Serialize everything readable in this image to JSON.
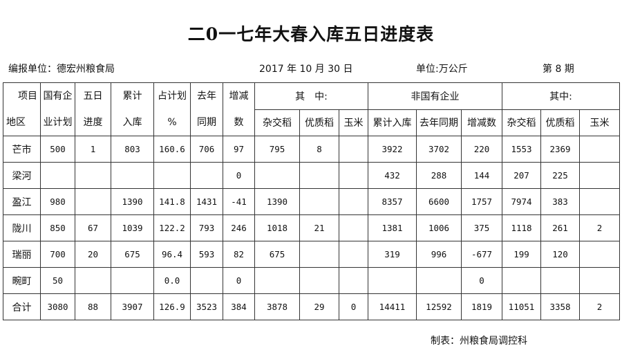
{
  "title": "二0一七年大春入库五日进度表",
  "info": {
    "unit_label": "编报单位：德宏州粮食局",
    "date": "2017 年 10 月 30 日",
    "measure": "单位:万公斤",
    "issue": "第 8 期"
  },
  "header": {
    "region": [
      "项目",
      "地区"
    ],
    "state_plan": [
      "国有企",
      "业计划"
    ],
    "five_day": [
      "五日",
      "进度"
    ],
    "cumulative": [
      "累计",
      "入库"
    ],
    "pct_plan": [
      "占计划",
      "%"
    ],
    "last_year": [
      "去年",
      "同期"
    ],
    "change": [
      "增减",
      "数"
    ],
    "of_which_1": "其　中:",
    "non_state": "非国有企业",
    "of_which_2": "其中:",
    "sub": [
      "杂交稻",
      "优质稻",
      "玉米",
      "累计入库",
      "去年同期",
      "增减数",
      "杂交稻",
      "优质稻",
      "玉米"
    ]
  },
  "rows": [
    [
      "芒市",
      "500",
      "1",
      "803",
      "160.6",
      "706",
      "97",
      "795",
      "8",
      "",
      "3922",
      "3702",
      "220",
      "1553",
      "2369",
      ""
    ],
    [
      "梁河",
      "",
      "",
      "",
      "",
      "",
      "0",
      "",
      "",
      "",
      "432",
      "288",
      "144",
      "207",
      "225",
      ""
    ],
    [
      "盈江",
      "980",
      "",
      "1390",
      "141.8",
      "1431",
      "-41",
      "1390",
      "",
      "",
      "8357",
      "6600",
      "1757",
      "7974",
      "383",
      ""
    ],
    [
      "陇川",
      "850",
      "67",
      "1039",
      "122.2",
      "793",
      "246",
      "1018",
      "21",
      "",
      "1381",
      "1006",
      "375",
      "1118",
      "261",
      "2"
    ],
    [
      "瑞丽",
      "700",
      "20",
      "675",
      "96.4",
      "593",
      "82",
      "675",
      "",
      "",
      "319",
      "996",
      "-677",
      "199",
      "120",
      ""
    ],
    [
      "畹町",
      "50",
      "",
      "",
      "0.0",
      "",
      "0",
      "",
      "",
      "",
      "",
      "",
      "0",
      "",
      "",
      ""
    ],
    [
      "合计",
      "3080",
      "88",
      "3907",
      "126.9",
      "3523",
      "384",
      "3878",
      "29",
      "0",
      "14411",
      "12592",
      "1819",
      "11051",
      "3358",
      "2"
    ]
  ],
  "footer": "制表：州粮食局调控科"
}
